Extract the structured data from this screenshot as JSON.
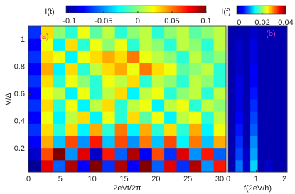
{
  "chart_data": [
    {
      "type": "heatmap",
      "panel_label": "(a)",
      "xlabel": "2eVt/2π",
      "ylabel": "V/Δ",
      "colorbar_label": "I(t)",
      "xlim": [
        0,
        31
      ],
      "ylim": [
        0.03,
        1.1
      ],
      "xticks": [
        0,
        5,
        10,
        15,
        20,
        25,
        30
      ],
      "yticks": [
        0.2,
        0.4,
        0.6,
        0.8,
        1
      ],
      "clim": [
        -0.105,
        0.1
      ],
      "cticks": [
        -0.1,
        -0.05,
        0,
        0.05,
        0.1
      ],
      "z": [
        [
          -0.1,
          0.08,
          -0.06,
          0.09,
          -0.08,
          0.1,
          -0.07,
          0.09,
          -0.08,
          0.1,
          -0.06,
          0.08,
          -0.07,
          0.09,
          -0.05,
          0.07
        ],
        [
          -0.09,
          0.06,
          0.1,
          -0.05,
          0.08,
          -0.09,
          0.07,
          -0.06,
          0.09,
          -0.08,
          0.06,
          -0.07,
          0.08,
          -0.05,
          0.07,
          -0.06
        ],
        [
          -0.08,
          0.04,
          -0.04,
          0.06,
          -0.05,
          0.07,
          -0.04,
          0.06,
          -0.05,
          0.05,
          -0.04,
          0.06,
          -0.03,
          0.05,
          -0.04,
          0.04
        ],
        [
          -0.07,
          0.03,
          -0.02,
          0.03,
          -0.03,
          0.04,
          -0.02,
          0.05,
          -0.03,
          0.04,
          -0.02,
          0.03,
          -0.02,
          0.04,
          -0.03,
          0.02
        ],
        [
          -0.08,
          0.02,
          -0.03,
          0.01,
          0.03,
          -0.03,
          0.02,
          -0.02,
          0.03,
          -0.01,
          0.02,
          -0.03,
          0.01,
          0.02,
          -0.02,
          0.01
        ],
        [
          -0.07,
          0.03,
          -0.02,
          0.02,
          -0.03,
          0.01,
          0.03,
          -0.02,
          0.01,
          0.02,
          -0.03,
          0.01,
          0.02,
          -0.02,
          0.01,
          0
        ],
        [
          -0.08,
          0.02,
          0.01,
          -0.03,
          0.02,
          -0.02,
          0.01,
          0.03,
          -0.03,
          0.01,
          0.02,
          -0.02,
          0,
          0.01,
          -0.02,
          0.01
        ],
        [
          -0.07,
          0.03,
          -0.02,
          0.02,
          0,
          -0.02,
          0.02,
          0.01,
          0.03,
          -0.02,
          0.01,
          0,
          -0.02,
          0.01,
          0,
          -0.02
        ],
        [
          -0.08,
          0.04,
          -0.03,
          0.03,
          -0.02,
          0.01,
          0.03,
          0.04,
          0.02,
          0.05,
          0.03,
          0.02,
          -0.01,
          0,
          0.01,
          -0.02
        ],
        [
          -0.07,
          0.03,
          0.02,
          -0.03,
          0.02,
          0.03,
          0.04,
          0.03,
          0.05,
          0.02,
          0.01,
          0,
          -0.02,
          0.01,
          -0.01,
          0
        ],
        [
          -0.08,
          0.02,
          -0.03,
          0.03,
          -0.02,
          0.02,
          0,
          0.02,
          -0.02,
          0.01,
          0,
          -0.02,
          0.01,
          0,
          -0.02,
          0.01
        ],
        [
          -0.07,
          0.03,
          0,
          -0.02,
          0.02,
          -0.01,
          0.01,
          -0.02,
          0,
          0.01,
          -0.02,
          0,
          0.01,
          -0.01,
          0,
          0.01
        ]
      ]
    },
    {
      "type": "heatmap",
      "panel_label": "(b)",
      "xlabel": "f(2eV/h)",
      "colorbar_label": "I(f)",
      "xlim": [
        0,
        2.1
      ],
      "ylim": [
        0.03,
        1.1
      ],
      "xticks": [
        0,
        1,
        2
      ],
      "clim": [
        -0.002,
        0.04
      ],
      "cticks": [
        0,
        0.02,
        0.04
      ],
      "z": [
        [
          0,
          0.008,
          0.001,
          0.012,
          0,
          0.001,
          0,
          0
        ],
        [
          0,
          0.006,
          0.001,
          0.01,
          0,
          0,
          0,
          0
        ],
        [
          0,
          0.005,
          0,
          0.009,
          0,
          0,
          0,
          0
        ],
        [
          0,
          0.004,
          0,
          0.007,
          0,
          0,
          0,
          0
        ],
        [
          0,
          0.003,
          0,
          0.006,
          0,
          0,
          0,
          0
        ],
        [
          0,
          0.002,
          0,
          0.005,
          0,
          0,
          0,
          0
        ],
        [
          0,
          0.002,
          0,
          0.004,
          0,
          0,
          0,
          0
        ],
        [
          0,
          0.002,
          0,
          0.003,
          0,
          0,
          0,
          0
        ],
        [
          0,
          0.001,
          0,
          0.003,
          0,
          0,
          0,
          0
        ],
        [
          0,
          0.001,
          0,
          0.002,
          0,
          0,
          0,
          0
        ],
        [
          0,
          0.001,
          0,
          0.002,
          0,
          0,
          0,
          0
        ],
        [
          0,
          0,
          0,
          0.001,
          0,
          0,
          0,
          0
        ]
      ]
    }
  ]
}
